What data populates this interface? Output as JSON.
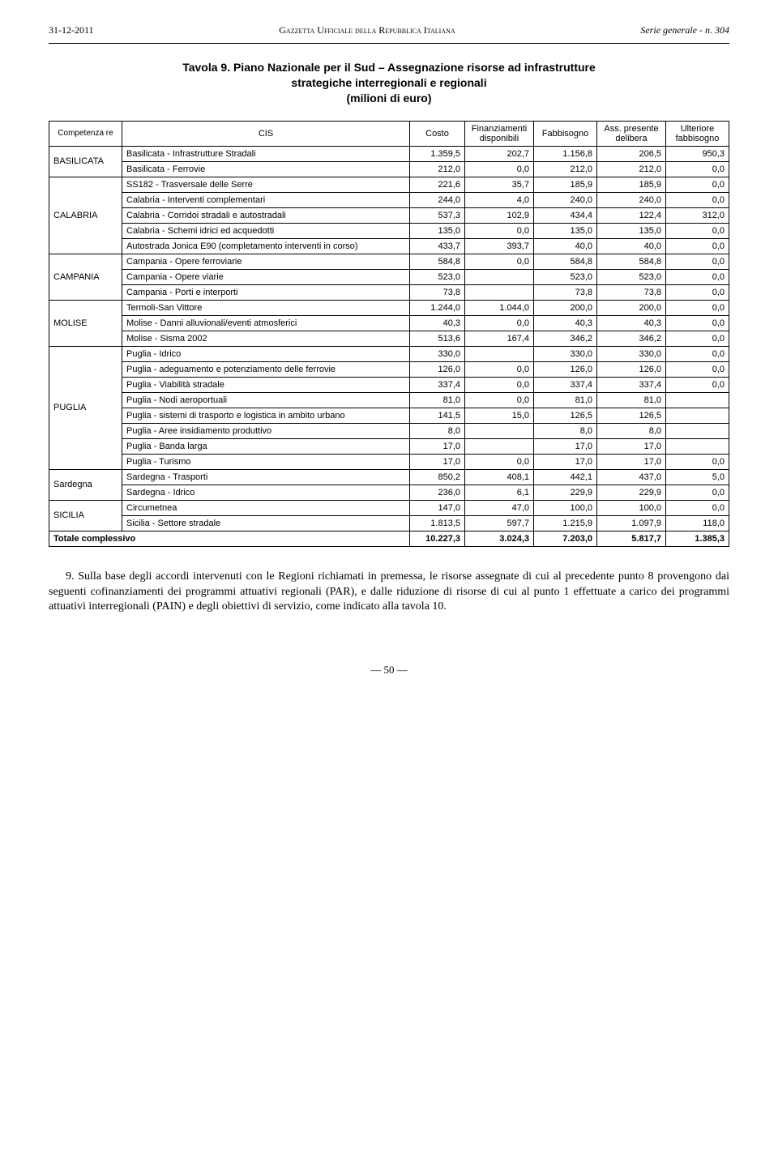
{
  "header": {
    "left": "31-12-2011",
    "center": "Gazzetta Ufficiale della Repubblica Italiana",
    "right": "Serie generale - n. 304"
  },
  "title_line1": "Tavola 9. Piano Nazionale per il Sud – Assegnazione risorse ad infrastrutture",
  "title_line2": "strategiche interregionali e regionali",
  "title_line3": "(milioni di euro)",
  "columns": {
    "competenza": "Competenza re",
    "cis": "CIS",
    "costo": "Costo",
    "finanz": "Finanziamenti disponibili",
    "fabbisogno": "Fabbisogno",
    "ass": "Ass. presente delibera",
    "ult": "Ulteriore fabbisogno"
  },
  "rows": [
    {
      "region": "BASILICATA",
      "rowspan": 2,
      "label": "Basilicata - Infrastrutture Stradali",
      "c": "1.359,5",
      "f": "202,7",
      "fb": "1.156,8",
      "a": "206,5",
      "u": "950,3"
    },
    {
      "label": "Basilicata - Ferrovie",
      "c": "212,0",
      "f": "0,0",
      "fb": "212,0",
      "a": "212,0",
      "u": "0,0"
    },
    {
      "region": "CALABRIA",
      "rowspan": 5,
      "label": "SS182 - Trasversale delle Serre",
      "c": "221,6",
      "f": "35,7",
      "fb": "185,9",
      "a": "185,9",
      "u": "0,0"
    },
    {
      "label": "Calabria - Interventi complementari",
      "c": "244,0",
      "f": "4,0",
      "fb": "240,0",
      "a": "240,0",
      "u": "0,0"
    },
    {
      "label": "Calabria - Corridoi stradali e autostradali",
      "c": "537,3",
      "f": "102,9",
      "fb": "434,4",
      "a": "122,4",
      "u": "312,0"
    },
    {
      "label": "Calabria - Schemi idrici ed acquedotti",
      "c": "135,0",
      "f": "0,0",
      "fb": "135,0",
      "a": "135,0",
      "u": "0,0"
    },
    {
      "label": "Autostrada Jonica E90 (completamento interventi in corso)",
      "c": "433,7",
      "f": "393,7",
      "fb": "40,0",
      "a": "40,0",
      "u": "0,0"
    },
    {
      "region": "CAMPANIA",
      "rowspan": 3,
      "label": "Campania - Opere ferroviarie",
      "c": "584,8",
      "f": "0,0",
      "fb": "584,8",
      "a": "584,8",
      "u": "0,0"
    },
    {
      "label": "Campania - Opere viarie",
      "c": "523,0",
      "f": "",
      "fb": "523,0",
      "a": "523,0",
      "u": "0,0"
    },
    {
      "label": "Campania - Porti e interporti",
      "c": "73,8",
      "f": "",
      "fb": "73,8",
      "a": "73,8",
      "u": "0,0"
    },
    {
      "region": "MOLISE",
      "rowspan": 3,
      "label": "Termoli-San Vittore",
      "c": "1.244,0",
      "f": "1.044,0",
      "fb": "200,0",
      "a": "200,0",
      "u": "0,0"
    },
    {
      "label": "Molise - Danni alluvionali/eventi atmosferici",
      "c": "40,3",
      "f": "0,0",
      "fb": "40,3",
      "a": "40,3",
      "u": "0,0"
    },
    {
      "label": "Molise - Sisma 2002",
      "c": "513,6",
      "f": "167,4",
      "fb": "346,2",
      "a": "346,2",
      "u": "0,0"
    },
    {
      "region": "PUGLIA",
      "rowspan": 8,
      "label": "Puglia - Idrico",
      "c": "330,0",
      "f": "",
      "fb": "330,0",
      "a": "330,0",
      "u": "0,0"
    },
    {
      "label": "Puglia - adeguamento e potenziamento delle ferrovie",
      "c": "126,0",
      "f": "0,0",
      "fb": "126,0",
      "a": "126,0",
      "u": "0,0"
    },
    {
      "label": "Puglia - Viabilità stradale",
      "c": "337,4",
      "f": "0,0",
      "fb": "337,4",
      "a": "337,4",
      "u": "0,0"
    },
    {
      "label": "Puglia - Nodi aeroportuali",
      "c": "81,0",
      "f": "0,0",
      "fb": "81,0",
      "a": "81,0",
      "u": ""
    },
    {
      "label": "Puglia - sistemi di trasporto e logistica in ambito urbano",
      "c": "141,5",
      "f": "15,0",
      "fb": "126,5",
      "a": "126,5",
      "u": ""
    },
    {
      "label": "Puglia - Aree insidiamento produttivo",
      "c": "8,0",
      "f": "",
      "fb": "8,0",
      "a": "8,0",
      "u": ""
    },
    {
      "label": "Puglia - Banda larga",
      "c": "17,0",
      "f": "",
      "fb": "17,0",
      "a": "17,0",
      "u": ""
    },
    {
      "label": "Puglia - Turismo",
      "c": "17,0",
      "f": "0,0",
      "fb": "17,0",
      "a": "17,0",
      "u": "0,0"
    },
    {
      "region": "Sardegna",
      "rowspan": 2,
      "label": "Sardegna - Trasporti",
      "c": "850,2",
      "f": "408,1",
      "fb": "442,1",
      "a": "437,0",
      "u": "5,0"
    },
    {
      "label": "Sardegna - Idrico",
      "c": "236,0",
      "f": "6,1",
      "fb": "229,9",
      "a": "229,9",
      "u": "0,0"
    },
    {
      "region": "SICILIA",
      "rowspan": 2,
      "label": "Circumetnea",
      "c": "147,0",
      "f": "47,0",
      "fb": "100,0",
      "a": "100,0",
      "u": "0,0"
    },
    {
      "label": "Sicilia - Settore stradale",
      "c": "1.813,5",
      "f": "597,7",
      "fb": "1.215,9",
      "a": "1.097,9",
      "u": "118,0"
    }
  ],
  "total": {
    "label": "Totale complessivo",
    "c": "10.227,3",
    "f": "3.024,3",
    "fb": "7.203,0",
    "a": "5.817,7",
    "u": "1.385,3"
  },
  "paragraph": "9. Sulla base degli accordi intervenuti con le Regioni richiamati in premessa, le risorse assegnate di cui al precedente punto 8 provengono dai seguenti cofinanziamenti dei programmi attuativi regionali (PAR), e dalle riduzione di risorse di cui al punto 1 effettuate a carico dei programmi attuativi interregionali (PAIN) e degli obiettivi di servizio, come indicato alla tavola 10.",
  "page_number": "— 50 —"
}
